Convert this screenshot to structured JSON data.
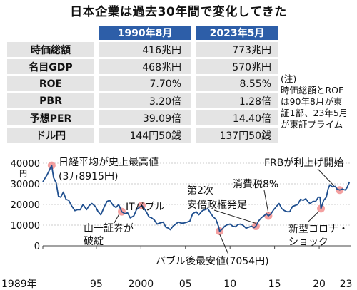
{
  "title": "日本企業は過去30年間で変化してきた",
  "table": {
    "headers": [
      "1990年8月",
      "2023年5月"
    ],
    "rows": [
      {
        "label": "時価総額",
        "v1990": "416兆円",
        "v2023": "773兆円"
      },
      {
        "label": "名目GDP",
        "v1990": "468兆円",
        "v2023": "570兆円"
      },
      {
        "label": "ROE",
        "v1990": "7.70%",
        "v2023": "8.55%"
      },
      {
        "label": "PBR",
        "v1990": "3.20倍",
        "v2023": "1.28倍"
      },
      {
        "label": "予想PER",
        "v1990": "39.09倍",
        "v2023": "14.40倍"
      },
      {
        "label": "ドル円",
        "v1990": "144円50銭",
        "v2023": "137円50銭"
      }
    ]
  },
  "note": {
    "lines": [
      "(注)",
      "時価総額とROE",
      "は90年8月が東",
      "証1部、23年5月",
      "が東証プライム"
    ]
  },
  "chart_data": {
    "type": "line",
    "y_unit": "円",
    "ylim": [
      0,
      40000
    ],
    "y_ticks": [
      "40000",
      "30000",
      "20000",
      "10000",
      "0"
    ],
    "y_tick_values": [
      40000,
      30000,
      20000,
      10000,
      0
    ],
    "x_tick_labels": [
      "1989年",
      "95",
      "2000",
      "05",
      "10",
      "15",
      "20",
      "23"
    ],
    "x_tick_years": [
      1989,
      1995,
      2000,
      2005,
      2010,
      2015,
      2020,
      2023
    ],
    "xlim": [
      1989,
      2023.6
    ],
    "line_color": "#1f4f8f",
    "highlight_color": "#f08080",
    "series": [
      {
        "x": [
          1989.0,
          1989.5,
          1989.99,
          1990.2,
          1990.5,
          1990.75,
          1991.0,
          1991.3,
          1991.6,
          1991.9,
          1992.2,
          1992.6,
          1992.9,
          1993.2,
          1993.5,
          1993.9,
          1994.2,
          1994.5,
          1994.9,
          1995.2,
          1995.5,
          1995.9,
          1996.2,
          1996.5,
          1996.9,
          1997.2,
          1997.5,
          1997.85,
          1998.2,
          1998.5,
          1998.8,
          1999.2,
          1999.5,
          1999.8,
          2000.1,
          2000.3,
          2000.6,
          2000.9,
          2001.2,
          2001.5,
          2001.8,
          2002.1,
          2002.5,
          2002.8,
          2003.1,
          2003.3,
          2003.6,
          2003.9,
          2004.2,
          2004.5,
          2004.8,
          2005.2,
          2005.5,
          2005.8,
          2006.2,
          2006.5,
          2006.9,
          2007.2,
          2007.5,
          2007.8,
          2008.1,
          2008.4,
          2008.7,
          2008.83,
          2009.1,
          2009.4,
          2009.7,
          2010.0,
          2010.3,
          2010.6,
          2010.9,
          2011.2,
          2011.5,
          2011.8,
          2012.1,
          2012.4,
          2012.7,
          2012.9,
          2013.2,
          2013.5,
          2013.8,
          2014.1,
          2014.3,
          2014.6,
          2014.9,
          2015.2,
          2015.5,
          2015.8,
          2016.1,
          2016.4,
          2016.7,
          2017.0,
          2017.3,
          2017.6,
          2017.9,
          2018.2,
          2018.5,
          2018.8,
          2019.0,
          2019.3,
          2019.6,
          2019.9,
          2020.1,
          2020.2,
          2020.5,
          2020.8,
          2021.0,
          2021.2,
          2021.5,
          2021.8,
          2022.0,
          2022.3,
          2022.6,
          2022.9,
          2023.1,
          2023.4
        ],
        "y": [
          31000,
          34500,
          38915,
          33000,
          30500,
          24000,
          23500,
          26000,
          22500,
          22000,
          19500,
          17000,
          17500,
          17500,
          20000,
          17500,
          19500,
          20500,
          19000,
          16500,
          15000,
          19000,
          21500,
          22000,
          19500,
          18500,
          20000,
          16500,
          15500,
          16000,
          13500,
          14500,
          17500,
          18500,
          19500,
          18500,
          16500,
          14000,
          13500,
          12500,
          10500,
          11000,
          11500,
          9000,
          8500,
          7800,
          9500,
          10500,
          11500,
          11000,
          11000,
          11500,
          12000,
          15500,
          16500,
          15000,
          17000,
          17500,
          18000,
          16000,
          14000,
          13000,
          9500,
          7054,
          8000,
          9500,
          10200,
          10500,
          9500,
          9200,
          10300,
          10500,
          9800,
          8500,
          9000,
          9500,
          8800,
          9500,
          12000,
          13500,
          14500,
          15500,
          14500,
          15500,
          17500,
          19000,
          20500,
          18000,
          17000,
          16500,
          16500,
          19000,
          19500,
          20000,
          22500,
          22000,
          22800,
          21000,
          20500,
          21500,
          21500,
          23500,
          23500,
          18000,
          22000,
          23500,
          27500,
          29500,
          28500,
          28800,
          27500,
          27000,
          27500,
          27000,
          28000,
          31000
        ]
      }
    ],
    "events": [
      {
        "text_lines": [
          "日経平均が史上最高値",
          "(3万8915円)"
        ],
        "x": 1989.99,
        "y": 38915
      },
      {
        "text_lines": [
          "ITバブル"
        ],
        "x": 2000.1,
        "y": 19500
      },
      {
        "text_lines": [
          "山一証券が",
          "破綻"
        ],
        "x": 1997.85,
        "y": 16500
      },
      {
        "text_lines": [
          "第2次",
          "安倍政権発足"
        ],
        "x": 2012.9,
        "y": 9500
      },
      {
        "text_lines": [
          "消費税8%"
        ],
        "x": 2014.3,
        "y": 14500
      },
      {
        "text_lines": [
          "FRBが利上げ開始"
        ],
        "x": 2022.3,
        "y": 27000
      },
      {
        "text_lines": [
          "新型コロナ・",
          "ショック"
        ],
        "x": 2020.2,
        "y": 18000
      },
      {
        "text_lines": [
          "バブル後最安値(7054円)"
        ],
        "x": 2008.83,
        "y": 7054
      }
    ]
  }
}
